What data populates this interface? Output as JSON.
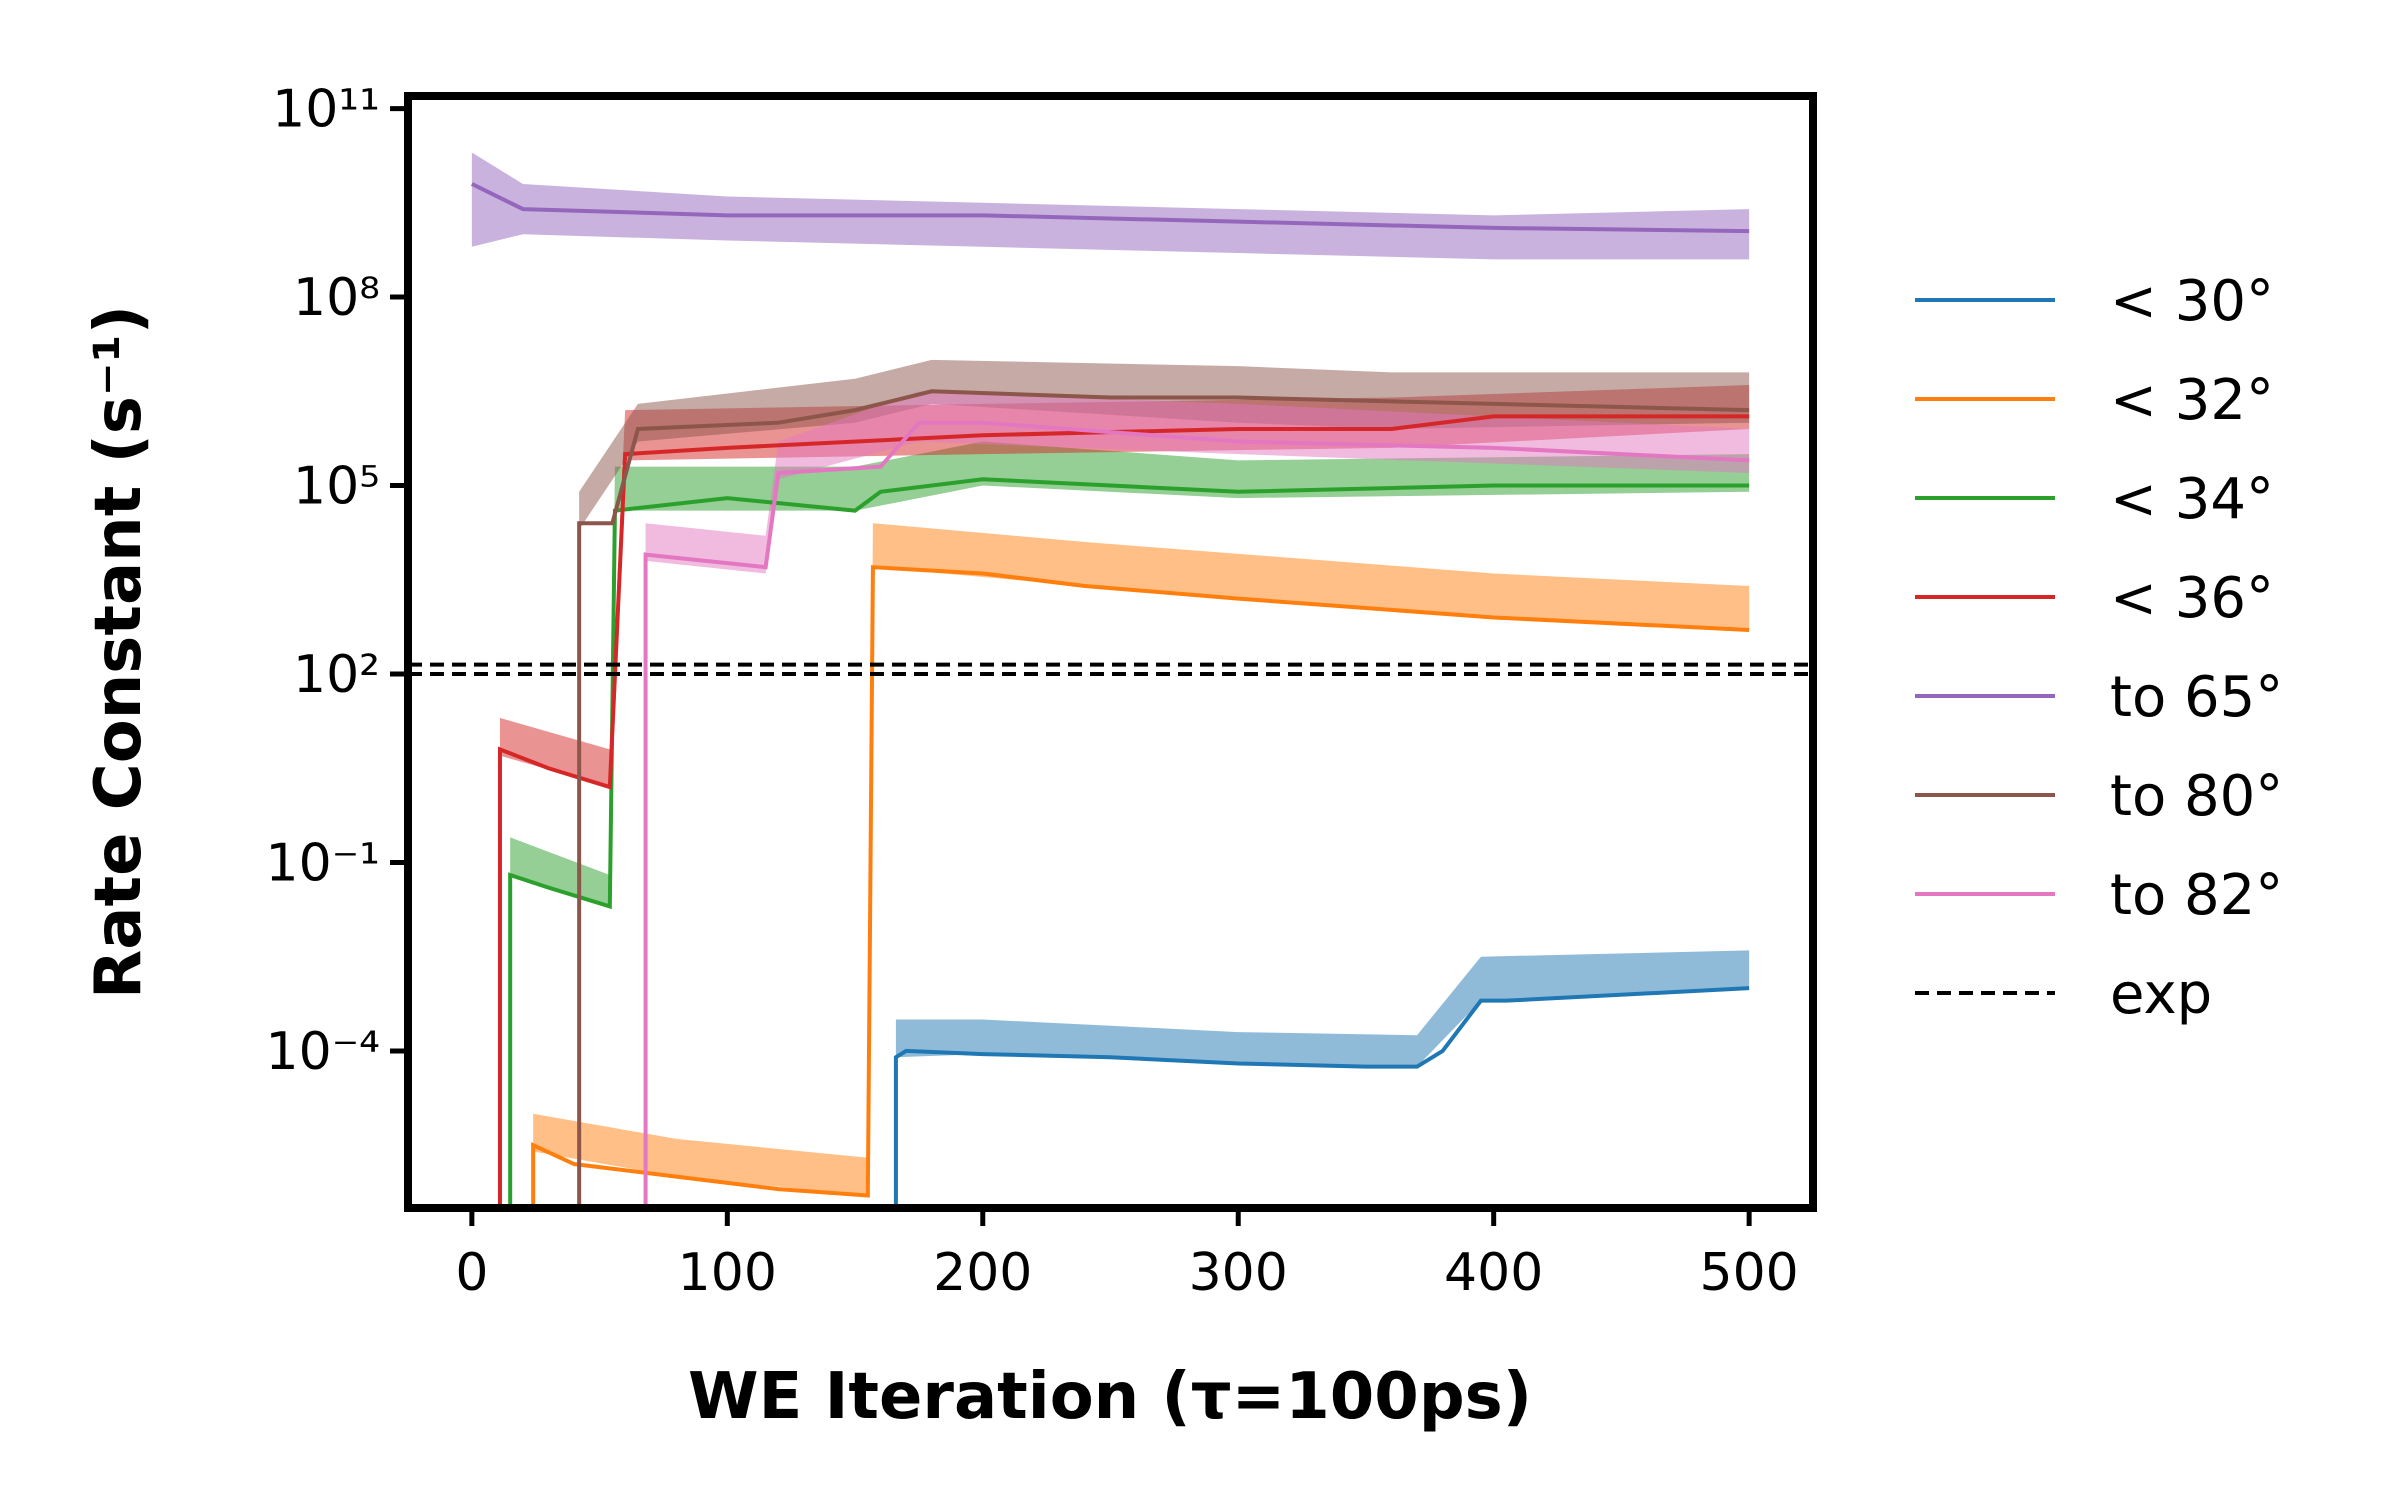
{
  "chart_data": {
    "type": "line",
    "xlabel": "WE Iteration (τ=100ps)",
    "ylabel": "Rate Constant (s⁻¹)",
    "xlim": [
      -25,
      525
    ],
    "ylim_log10": [
      -6.5,
      11.2
    ],
    "xticks": [
      0,
      100,
      200,
      300,
      400,
      500
    ],
    "xtick_labels": [
      "0",
      "100",
      "200",
      "300",
      "400",
      "500"
    ],
    "yticks_log10": [
      -4,
      -1,
      2,
      5,
      8,
      11
    ],
    "ytick_labels": [
      "10⁻⁴",
      "10⁻¹",
      "10²",
      "10⁵",
      "10⁸",
      "10¹¹"
    ],
    "legend_position": "outside-right",
    "series": [
      {
        "name": "< 30°",
        "color": "#1f77b4",
        "start_x": 166,
        "points_log10": [
          [
            166,
            -4.1
          ],
          [
            170,
            -4.0
          ],
          [
            200,
            -4.05
          ],
          [
            250,
            -4.1
          ],
          [
            300,
            -4.2
          ],
          [
            350,
            -4.25
          ],
          [
            370,
            -4.25
          ],
          [
            380,
            -4.0
          ],
          [
            395,
            -3.2
          ],
          [
            405,
            -3.2
          ],
          [
            500,
            -3.0
          ]
        ],
        "band_log10": [
          [
            166,
            -4.1,
            -3.5
          ],
          [
            200,
            -4.05,
            -3.5
          ],
          [
            250,
            -4.1,
            -3.6
          ],
          [
            300,
            -4.2,
            -3.7
          ],
          [
            370,
            -4.25,
            -3.75
          ],
          [
            395,
            -3.2,
            -2.5
          ],
          [
            500,
            -3.0,
            -2.4
          ]
        ]
      },
      {
        "name": "< 32°",
        "color": "#ff7f0e",
        "start_x": 24,
        "points_log10": [
          [
            24,
            -5.5
          ],
          [
            40,
            -5.8
          ],
          [
            80,
            -6.0
          ],
          [
            120,
            -6.2
          ],
          [
            155,
            -6.3
          ],
          [
            157,
            3.7
          ],
          [
            200,
            3.6
          ],
          [
            240,
            3.4
          ],
          [
            300,
            3.2
          ],
          [
            400,
            2.9
          ],
          [
            500,
            2.7
          ]
        ],
        "band_log10": [
          [
            24,
            -5.6,
            -5.0
          ],
          [
            80,
            -6.0,
            -5.4
          ],
          [
            155,
            -6.3,
            -5.7
          ],
          [
            157,
            3.7,
            4.4
          ],
          [
            240,
            3.4,
            4.1
          ],
          [
            400,
            2.9,
            3.6
          ],
          [
            500,
            2.7,
            3.4
          ]
        ]
      },
      {
        "name": "< 34°",
        "color": "#2ca02c",
        "start_x": 15,
        "points_log10": [
          [
            15,
            -1.2
          ],
          [
            30,
            -1.4
          ],
          [
            54,
            -1.7
          ],
          [
            56,
            4.6
          ],
          [
            100,
            4.8
          ],
          [
            150,
            4.6
          ],
          [
            160,
            4.9
          ],
          [
            200,
            5.1
          ],
          [
            300,
            4.9
          ],
          [
            400,
            5.0
          ],
          [
            500,
            5.0
          ]
        ],
        "band_log10": [
          [
            15,
            -1.2,
            -0.6
          ],
          [
            54,
            -1.7,
            -1.2
          ],
          [
            56,
            4.6,
            5.3
          ],
          [
            150,
            4.6,
            5.3
          ],
          [
            200,
            5.0,
            5.7
          ],
          [
            300,
            4.8,
            5.4
          ],
          [
            500,
            4.9,
            5.5
          ]
        ]
      },
      {
        "name": "< 36°",
        "color": "#d62728",
        "start_x": 11,
        "points_log10": [
          [
            11,
            0.8
          ],
          [
            30,
            0.5
          ],
          [
            54,
            0.2
          ],
          [
            60,
            5.5
          ],
          [
            100,
            5.6
          ],
          [
            200,
            5.8
          ],
          [
            300,
            5.9
          ],
          [
            360,
            5.9
          ],
          [
            400,
            6.1
          ],
          [
            500,
            6.1
          ]
        ],
        "band_log10": [
          [
            11,
            0.7,
            1.3
          ],
          [
            54,
            0.2,
            0.8
          ],
          [
            60,
            5.4,
            6.2
          ],
          [
            200,
            5.5,
            6.3
          ],
          [
            360,
            5.6,
            6.4
          ],
          [
            500,
            5.9,
            6.6
          ]
        ]
      },
      {
        "name": "to 65°",
        "color": "#9467bd",
        "start_x": 0,
        "points_log10": [
          [
            0,
            9.8
          ],
          [
            20,
            9.4
          ],
          [
            100,
            9.3
          ],
          [
            200,
            9.3
          ],
          [
            300,
            9.2
          ],
          [
            400,
            9.1
          ],
          [
            500,
            9.05
          ]
        ],
        "band_log10": [
          [
            0,
            8.8,
            10.3
          ],
          [
            20,
            9.0,
            9.8
          ],
          [
            100,
            8.9,
            9.6
          ],
          [
            200,
            8.8,
            9.5
          ],
          [
            300,
            8.7,
            9.4
          ],
          [
            400,
            8.6,
            9.3
          ],
          [
            500,
            8.6,
            9.4
          ]
        ]
      },
      {
        "name": "to 80°",
        "color": "#8c564b",
        "start_x": 42,
        "points_log10": [
          [
            42,
            4.4
          ],
          [
            55,
            4.4
          ],
          [
            65,
            5.9
          ],
          [
            120,
            6.0
          ],
          [
            150,
            6.2
          ],
          [
            180,
            6.5
          ],
          [
            250,
            6.4
          ],
          [
            300,
            6.4
          ],
          [
            400,
            6.3
          ],
          [
            500,
            6.2
          ]
        ],
        "band_log10": [
          [
            42,
            4.3,
            4.9
          ],
          [
            65,
            5.7,
            6.3
          ],
          [
            150,
            6.0,
            6.7
          ],
          [
            180,
            6.3,
            7.0
          ],
          [
            300,
            6.0,
            6.9
          ],
          [
            360,
            5.9,
            6.8
          ],
          [
            500,
            6.0,
            6.8
          ]
        ]
      },
      {
        "name": "to 82°",
        "color": "#e377c2",
        "start_x": 68,
        "points_log10": [
          [
            68,
            3.9
          ],
          [
            115,
            3.7
          ],
          [
            120,
            5.2
          ],
          [
            160,
            5.3
          ],
          [
            175,
            6.0
          ],
          [
            200,
            6.0
          ],
          [
            300,
            5.7
          ],
          [
            400,
            5.6
          ],
          [
            500,
            5.4
          ]
        ],
        "band_log10": [
          [
            68,
            3.8,
            4.4
          ],
          [
            115,
            3.6,
            4.2
          ],
          [
            120,
            5.1,
            5.7
          ],
          [
            175,
            5.7,
            6.5
          ],
          [
            300,
            5.5,
            6.3
          ],
          [
            500,
            5.2,
            5.9
          ]
        ]
      },
      {
        "name": "exp",
        "color": "#000000",
        "dashed": true,
        "hlines_log10": [
          2.0,
          2.15
        ]
      }
    ]
  }
}
